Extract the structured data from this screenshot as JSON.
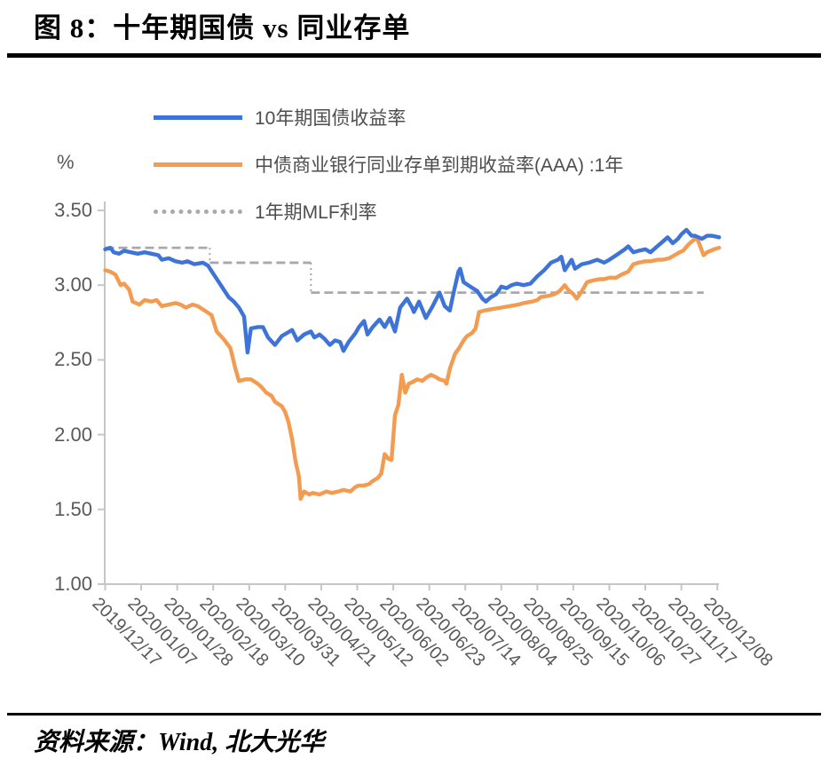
{
  "header": {
    "title": "图 8：十年期国债 vs 同业存单"
  },
  "footer": {
    "source": "资料来源：Wind, 北大光华"
  },
  "chart_data": {
    "type": "line",
    "title": "图 8：十年期国债 vs 同业存单",
    "unit_label": "%",
    "ylim": [
      1.0,
      3.5
    ],
    "grid": false,
    "legend_position": "top-left",
    "y_ticks": [
      "3.50",
      "3.00",
      "2.50",
      "2.00",
      "1.50",
      "1.00"
    ],
    "x_tick_interval_days": 21,
    "x_tick_labels": [
      "2019/12/17",
      "2020/01/07",
      "2020/01/28",
      "2020/02/18",
      "2020/03/10",
      "2020/03/31",
      "2020/04/21",
      "2020/05/12",
      "2020/06/02",
      "2020/06/23",
      "2020/07/14",
      "2020/08/04",
      "2020/08/25",
      "2020/09/15",
      "2020/10/06",
      "2020/10/27",
      "2020/11/17",
      "2020/12/08"
    ],
    "series": [
      {
        "name": "10年期国债收益率",
        "color": "#3E73D8",
        "line": "solid",
        "points": [
          [
            0,
            3.24
          ],
          [
            3,
            3.25
          ],
          [
            5,
            3.22
          ],
          [
            8,
            3.21
          ],
          [
            11,
            3.23
          ],
          [
            15,
            3.22
          ],
          [
            19,
            3.21
          ],
          [
            23,
            3.22
          ],
          [
            27,
            3.21
          ],
          [
            31,
            3.2
          ],
          [
            33,
            3.17
          ],
          [
            37,
            3.18
          ],
          [
            41,
            3.16
          ],
          [
            45,
            3.15
          ],
          [
            48,
            3.16
          ],
          [
            52,
            3.14
          ],
          [
            57,
            3.15
          ],
          [
            60,
            3.13
          ],
          [
            64,
            3.06
          ],
          [
            68,
            2.99
          ],
          [
            72,
            2.92
          ],
          [
            75,
            2.89
          ],
          [
            78,
            2.85
          ],
          [
            81,
            2.79
          ],
          [
            83,
            2.55
          ],
          [
            85,
            2.71
          ],
          [
            89,
            2.72
          ],
          [
            92,
            2.72
          ],
          [
            95,
            2.65
          ],
          [
            99,
            2.6
          ],
          [
            103,
            2.66
          ],
          [
            106,
            2.68
          ],
          [
            109,
            2.7
          ],
          [
            112,
            2.63
          ],
          [
            116,
            2.67
          ],
          [
            120,
            2.69
          ],
          [
            122,
            2.65
          ],
          [
            125,
            2.67
          ],
          [
            128,
            2.64
          ],
          [
            131,
            2.6
          ],
          [
            134,
            2.63
          ],
          [
            137,
            2.62
          ],
          [
            139,
            2.56
          ],
          [
            142,
            2.62
          ],
          [
            146,
            2.68
          ],
          [
            148,
            2.72
          ],
          [
            151,
            2.76
          ],
          [
            153,
            2.67
          ],
          [
            156,
            2.72
          ],
          [
            160,
            2.77
          ],
          [
            163,
            2.72
          ],
          [
            166,
            2.78
          ],
          [
            169,
            2.69
          ],
          [
            172,
            2.85
          ],
          [
            176,
            2.91
          ],
          [
            179,
            2.85
          ],
          [
            180,
            2.82
          ],
          [
            183,
            2.89
          ],
          [
            187,
            2.78
          ],
          [
            191,
            2.86
          ],
          [
            195,
            2.95
          ],
          [
            198,
            2.86
          ],
          [
            201,
            2.83
          ],
          [
            203,
            2.94
          ],
          [
            206,
            3.09
          ],
          [
            207,
            3.11
          ],
          [
            209,
            3.02
          ],
          [
            213,
            2.99
          ],
          [
            217,
            2.96
          ],
          [
            220,
            2.91
          ],
          [
            222,
            2.89
          ],
          [
            225,
            2.92
          ],
          [
            228,
            2.94
          ],
          [
            231,
            2.99
          ],
          [
            234,
            2.98
          ],
          [
            237,
            3.0
          ],
          [
            240,
            3.01
          ],
          [
            244,
            3.0
          ],
          [
            248,
            3.01
          ],
          [
            252,
            3.06
          ],
          [
            256,
            3.1
          ],
          [
            260,
            3.15
          ],
          [
            264,
            3.17
          ],
          [
            266,
            3.19
          ],
          [
            268,
            3.1
          ],
          [
            272,
            3.17
          ],
          [
            274,
            3.11
          ],
          [
            278,
            3.14
          ],
          [
            282,
            3.15
          ],
          [
            287,
            3.17
          ],
          [
            291,
            3.15
          ],
          [
            294,
            3.17
          ],
          [
            298,
            3.2
          ],
          [
            303,
            3.24
          ],
          [
            305,
            3.26
          ],
          [
            308,
            3.22
          ],
          [
            311,
            3.23
          ],
          [
            315,
            3.24
          ],
          [
            318,
            3.22
          ],
          [
            322,
            3.26
          ],
          [
            325,
            3.29
          ],
          [
            328,
            3.32
          ],
          [
            331,
            3.28
          ],
          [
            334,
            3.31
          ],
          [
            336,
            3.34
          ],
          [
            339,
            3.37
          ],
          [
            342,
            3.33
          ],
          [
            344,
            3.33
          ],
          [
            348,
            3.31
          ],
          [
            351,
            3.33
          ],
          [
            354,
            3.33
          ],
          [
            358,
            3.32
          ]
        ]
      },
      {
        "name": "中债商业银行同业存单到期收益率(AAA) :1年",
        "color": "#F29B51",
        "line": "solid",
        "points": [
          [
            0,
            3.1
          ],
          [
            3,
            3.09
          ],
          [
            6,
            3.07
          ],
          [
            9,
            3.0
          ],
          [
            11,
            3.01
          ],
          [
            14,
            2.97
          ],
          [
            16,
            2.89
          ],
          [
            20,
            2.87
          ],
          [
            23,
            2.9
          ],
          [
            27,
            2.89
          ],
          [
            30,
            2.9
          ],
          [
            33,
            2.86
          ],
          [
            37,
            2.87
          ],
          [
            41,
            2.88
          ],
          [
            44,
            2.87
          ],
          [
            47,
            2.85
          ],
          [
            51,
            2.87
          ],
          [
            54,
            2.86
          ],
          [
            58,
            2.83
          ],
          [
            62,
            2.8
          ],
          [
            65,
            2.69
          ],
          [
            69,
            2.64
          ],
          [
            73,
            2.58
          ],
          [
            76,
            2.44
          ],
          [
            78,
            2.36
          ],
          [
            82,
            2.37
          ],
          [
            85,
            2.37
          ],
          [
            89,
            2.34
          ],
          [
            91,
            2.32
          ],
          [
            94,
            2.28
          ],
          [
            97,
            2.26
          ],
          [
            99,
            2.22
          ],
          [
            103,
            2.19
          ],
          [
            105,
            2.15
          ],
          [
            107,
            2.08
          ],
          [
            109,
            1.97
          ],
          [
            111,
            1.82
          ],
          [
            113,
            1.72
          ],
          [
            114,
            1.57
          ],
          [
            116,
            1.62
          ],
          [
            119,
            1.6
          ],
          [
            121,
            1.61
          ],
          [
            125,
            1.6
          ],
          [
            129,
            1.62
          ],
          [
            132,
            1.61
          ],
          [
            136,
            1.62
          ],
          [
            139,
            1.63
          ],
          [
            143,
            1.62
          ],
          [
            146,
            1.65
          ],
          [
            148,
            1.66
          ],
          [
            151,
            1.66
          ],
          [
            154,
            1.67
          ],
          [
            156,
            1.69
          ],
          [
            159,
            1.71
          ],
          [
            161,
            1.74
          ],
          [
            163,
            1.87
          ],
          [
            165,
            1.84
          ],
          [
            167,
            1.83
          ],
          [
            169,
            2.13
          ],
          [
            171,
            2.2
          ],
          [
            173,
            2.4
          ],
          [
            175,
            2.28
          ],
          [
            177,
            2.34
          ],
          [
            179,
            2.35
          ],
          [
            182,
            2.37
          ],
          [
            185,
            2.36
          ],
          [
            187,
            2.38
          ],
          [
            190,
            2.4
          ],
          [
            192,
            2.39
          ],
          [
            195,
            2.37
          ],
          [
            198,
            2.36
          ],
          [
            199,
            2.34
          ],
          [
            201,
            2.44
          ],
          [
            204,
            2.54
          ],
          [
            207,
            2.59
          ],
          [
            209,
            2.63
          ],
          [
            211,
            2.66
          ],
          [
            214,
            2.68
          ],
          [
            216,
            2.71
          ],
          [
            218,
            2.82
          ],
          [
            221,
            2.83
          ],
          [
            226,
            2.84
          ],
          [
            231,
            2.85
          ],
          [
            236,
            2.86
          ],
          [
            241,
            2.87
          ],
          [
            244,
            2.88
          ],
          [
            249,
            2.89
          ],
          [
            252,
            2.9
          ],
          [
            254,
            2.92
          ],
          [
            259,
            2.93
          ],
          [
            262,
            2.94
          ],
          [
            265,
            2.96
          ],
          [
            268,
            3.0
          ],
          [
            270,
            2.97
          ],
          [
            273,
            2.94
          ],
          [
            275,
            2.91
          ],
          [
            278,
            2.96
          ],
          [
            281,
            3.02
          ],
          [
            284,
            3.03
          ],
          [
            288,
            3.04
          ],
          [
            291,
            3.04
          ],
          [
            294,
            3.05
          ],
          [
            298,
            3.05
          ],
          [
            301,
            3.07
          ],
          [
            305,
            3.09
          ],
          [
            308,
            3.14
          ],
          [
            311,
            3.15
          ],
          [
            315,
            3.16
          ],
          [
            318,
            3.16
          ],
          [
            322,
            3.17
          ],
          [
            325,
            3.17
          ],
          [
            329,
            3.18
          ],
          [
            332,
            3.2
          ],
          [
            335,
            3.22
          ],
          [
            337,
            3.23
          ],
          [
            340,
            3.27
          ],
          [
            342,
            3.29
          ],
          [
            344,
            3.31
          ],
          [
            345,
            3.32
          ],
          [
            347,
            3.26
          ],
          [
            349,
            3.2
          ],
          [
            351,
            3.22
          ],
          [
            353,
            3.23
          ],
          [
            355,
            3.24
          ],
          [
            358,
            3.25
          ]
        ]
      },
      {
        "name": "1年期MLF利率",
        "color": "#A9A9A9",
        "line": "dashed",
        "step": true,
        "points": [
          [
            0,
            3.25
          ],
          [
            61,
            3.25
          ],
          [
            61,
            3.15
          ],
          [
            120,
            3.15
          ],
          [
            120,
            2.95
          ],
          [
            349,
            2.95
          ]
        ]
      }
    ]
  }
}
